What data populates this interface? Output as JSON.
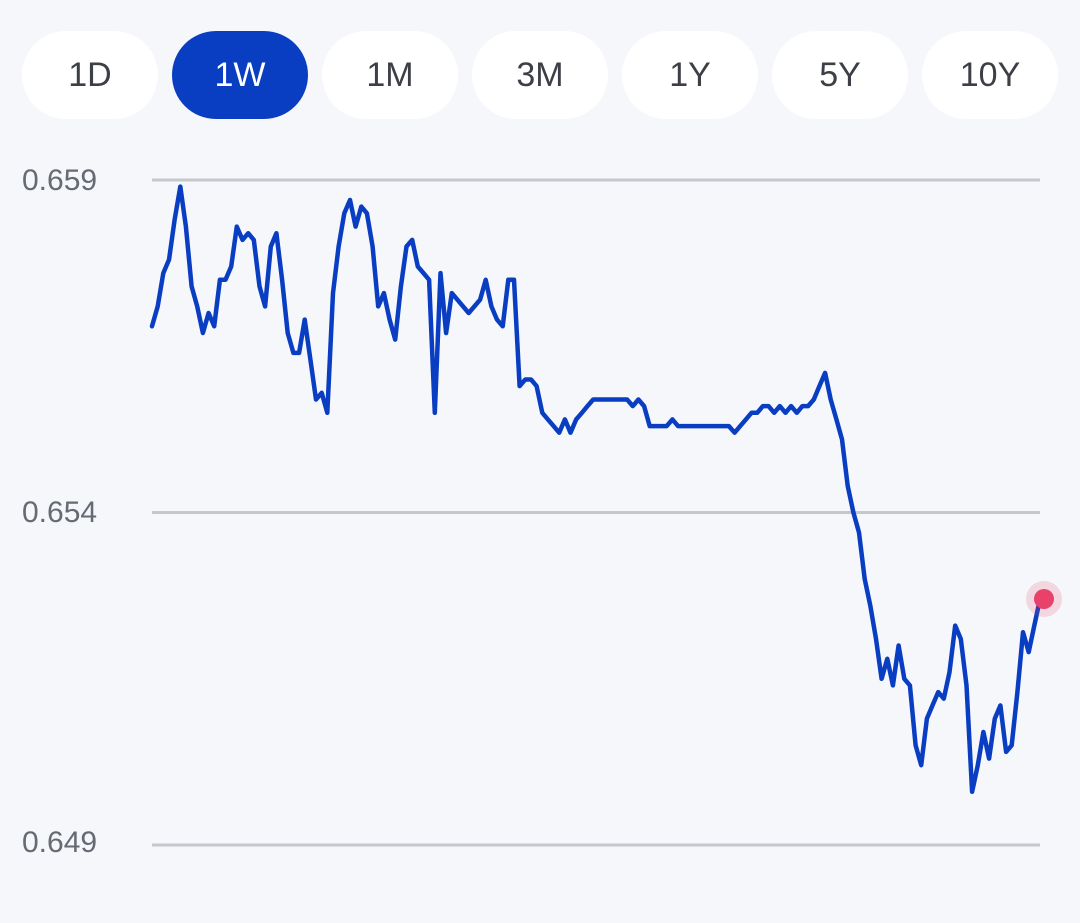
{
  "tabs": [
    {
      "label": "1D",
      "active": false
    },
    {
      "label": "1W",
      "active": true
    },
    {
      "label": "1M",
      "active": false
    },
    {
      "label": "3M",
      "active": false
    },
    {
      "label": "1Y",
      "active": false
    },
    {
      "label": "5Y",
      "active": false
    },
    {
      "label": "10Y",
      "active": false
    }
  ],
  "chart_data": {
    "type": "line",
    "title": "",
    "xlabel": "",
    "ylabel": "",
    "ylim": [
      0.649,
      0.659
    ],
    "yticks": [
      "0.659",
      "0.654",
      "0.649"
    ],
    "grid": true,
    "series_color": "#0a3ec2",
    "marker_color": "#e8416a",
    "series": [
      {
        "values": [
          0.6568,
          0.6571,
          0.6576,
          0.6578,
          0.6584,
          0.6589,
          0.6583,
          0.6574,
          0.6571,
          0.6567,
          0.657,
          0.6568,
          0.6575,
          0.6575,
          0.6577,
          0.6583,
          0.6581,
          0.6582,
          0.6581,
          0.6574,
          0.6571,
          0.658,
          0.6582,
          0.6575,
          0.6567,
          0.6564,
          0.6564,
          0.6569,
          0.6563,
          0.6557,
          0.6558,
          0.6555,
          0.6573,
          0.658,
          0.6585,
          0.6587,
          0.6583,
          0.6586,
          0.6585,
          0.658,
          0.6571,
          0.6573,
          0.6569,
          0.6566,
          0.6574,
          0.658,
          0.6581,
          0.6577,
          0.6576,
          0.6575,
          0.6555,
          0.6576,
          0.6567,
          0.6573,
          0.6572,
          0.6571,
          0.657,
          0.6571,
          0.6572,
          0.6575,
          0.6571,
          0.6569,
          0.6568,
          0.6575,
          0.6575,
          0.6559,
          0.656,
          0.656,
          0.6559,
          0.6555,
          0.6554,
          0.6553,
          0.6552,
          0.6554,
          0.6552,
          0.6554,
          0.6555,
          0.6556,
          0.6557,
          0.6557,
          0.6557,
          0.6557,
          0.6557,
          0.6557,
          0.6557,
          0.6556,
          0.6557,
          0.6556,
          0.6553,
          0.6553,
          0.6553,
          0.6553,
          0.6554,
          0.6553,
          0.6553,
          0.6553,
          0.6553,
          0.6553,
          0.6553,
          0.6553,
          0.6553,
          0.6553,
          0.6553,
          0.6552,
          0.6553,
          0.6554,
          0.6555,
          0.6555,
          0.6556,
          0.6556,
          0.6555,
          0.6556,
          0.6555,
          0.6556,
          0.6555,
          0.6556,
          0.6556,
          0.6557,
          0.6559,
          0.6561,
          0.6557,
          0.6554,
          0.6551,
          0.6544,
          0.654,
          0.6537,
          0.653,
          0.6526,
          0.6521,
          0.6515,
          0.6518,
          0.6514,
          0.652,
          0.6515,
          0.6514,
          0.6505,
          0.6502,
          0.6509,
          0.6511,
          0.6513,
          0.6512,
          0.6516,
          0.6523,
          0.6521,
          0.6514,
          0.6498,
          0.6502,
          0.6507,
          0.6503,
          0.6509,
          0.6511,
          0.6504,
          0.6505,
          0.6513,
          0.6522,
          0.6519,
          0.6523,
          0.6527
        ]
      }
    ]
  }
}
